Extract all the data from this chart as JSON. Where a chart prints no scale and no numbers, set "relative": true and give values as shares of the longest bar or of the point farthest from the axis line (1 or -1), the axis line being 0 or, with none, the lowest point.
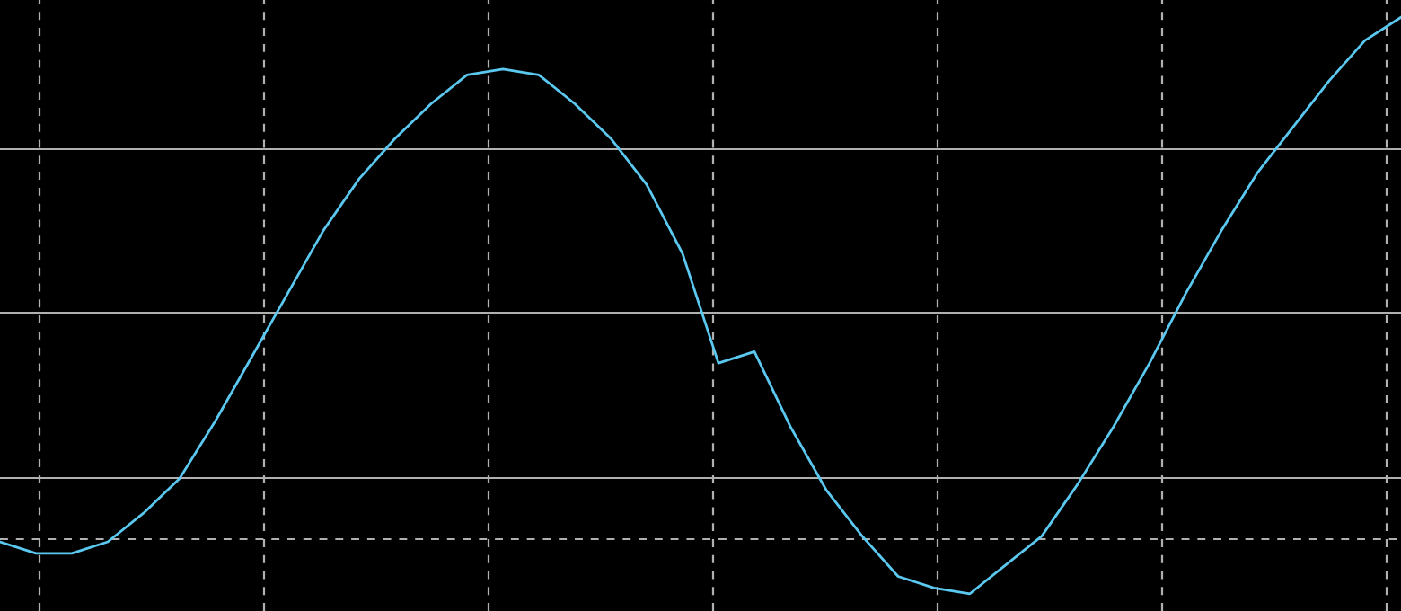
{
  "chart_data": {
    "type": "line",
    "relative": true,
    "grid": true,
    "marker": "none",
    "line_style": "solid",
    "categories": [
      null,
      null,
      null,
      null,
      null,
      null,
      null,
      null,
      null,
      null,
      null,
      null,
      null,
      null,
      null,
      null,
      null,
      null,
      null,
      null,
      null,
      null,
      null,
      null,
      null,
      null,
      null,
      null,
      null,
      null,
      null,
      null,
      null,
      null,
      null,
      null,
      null,
      null,
      null,
      null
    ],
    "series": [
      {
        "color": "#5bc8f0",
        "values": [
          0.09,
          0.07,
          0.07,
          0.09,
          0.14,
          0.2,
          0.3,
          0.41,
          0.52,
          0.63,
          0.72,
          0.79,
          0.85,
          0.9,
          0.91,
          0.9,
          0.85,
          0.79,
          0.71,
          0.59,
          0.4,
          0.42,
          0.29,
          0.18,
          0.1,
          0.03,
          0.01,
          0,
          0.05,
          0.1,
          0.19,
          0.29,
          0.4,
          0.52,
          0.63,
          0.73,
          0.81,
          0.89,
          0.96,
          1
        ]
      }
    ]
  }
}
